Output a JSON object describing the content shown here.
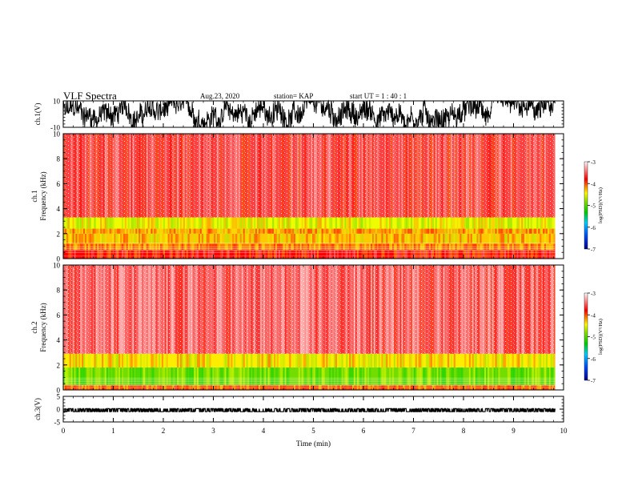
{
  "header": {
    "title": "VLF Spectra",
    "date": "Aug.23, 2020",
    "station": "station= KAP",
    "start_ut": "start  UT =   1 : 40 : 1"
  },
  "chart_data": [
    {
      "type": "line",
      "name": "waveform-ch1",
      "ylabel": "ch.1(V)",
      "ylim": [
        -10,
        10
      ],
      "yticks": [
        "10",
        "-10"
      ],
      "xlim": [
        0,
        10
      ],
      "x_extent": [
        0,
        9.83
      ],
      "description_values": {
        "typical_min": -8,
        "typical_max": 9
      },
      "color": "#000000"
    },
    {
      "type": "heatmap",
      "name": "spectrogram-ch1",
      "ylabel": "ch.1\nFrequency  (kHz)",
      "ylim": [
        0,
        10
      ],
      "yticks": [
        "0",
        "2",
        "4",
        "6",
        "8",
        "10"
      ],
      "xlim": [
        0,
        10
      ],
      "x_extent": [
        0,
        9.83
      ],
      "zlim": [
        -7,
        -3
      ],
      "bands": [
        {
          "from": 0.0,
          "to": 0.7,
          "level": -3.8
        },
        {
          "from": 0.7,
          "to": 1.2,
          "level": -4.1
        },
        {
          "from": 1.2,
          "to": 2.0,
          "level": -4.3
        },
        {
          "from": 2.0,
          "to": 2.4,
          "level": -4.2
        },
        {
          "from": 2.4,
          "to": 3.3,
          "level": -4.5
        },
        {
          "from": 3.3,
          "to": 10.0,
          "level": -3.6
        }
      ],
      "colorbar": {
        "label": "log(PSD)(V²/Hz)",
        "ticks": [
          "-3",
          "-4",
          "-5",
          "-6",
          "-7"
        ]
      }
    },
    {
      "type": "heatmap",
      "name": "spectrogram-ch2",
      "ylabel": "ch.2\nFrequency  (kHz)",
      "ylim": [
        0,
        10
      ],
      "yticks": [
        "0",
        "2",
        "4",
        "6",
        "8",
        "10"
      ],
      "xlim": [
        0,
        10
      ],
      "x_extent": [
        0,
        9.83
      ],
      "zlim": [
        -7,
        -3
      ],
      "bands": [
        {
          "from": 0.0,
          "to": 0.4,
          "level": -4.0
        },
        {
          "from": 0.4,
          "to": 1.8,
          "level": -4.9
        },
        {
          "from": 1.8,
          "to": 2.9,
          "level": -4.4
        },
        {
          "from": 2.9,
          "to": 10.0,
          "level": -3.5
        }
      ],
      "colorbar": {
        "label": "log(PSD)(V²/Hz)",
        "ticks": [
          "-3",
          "-4",
          "-5",
          "-6",
          "-7"
        ]
      }
    },
    {
      "type": "line",
      "name": "waveform-ch3",
      "ylabel": "ch.3(V)",
      "ylim": [
        -5,
        5
      ],
      "yticks": [
        "5",
        "0",
        "-5"
      ],
      "xlim": [
        0,
        10
      ],
      "x_extent": [
        0,
        9.83
      ],
      "description_values": {
        "typical_min": -1.0,
        "typical_max": 0.2
      },
      "color": "#000000"
    }
  ],
  "x_axis": {
    "xlabel": "Time  (min)",
    "ticks": [
      "0",
      "1",
      "2",
      "3",
      "4",
      "5",
      "6",
      "7",
      "8",
      "9",
      "10"
    ]
  }
}
